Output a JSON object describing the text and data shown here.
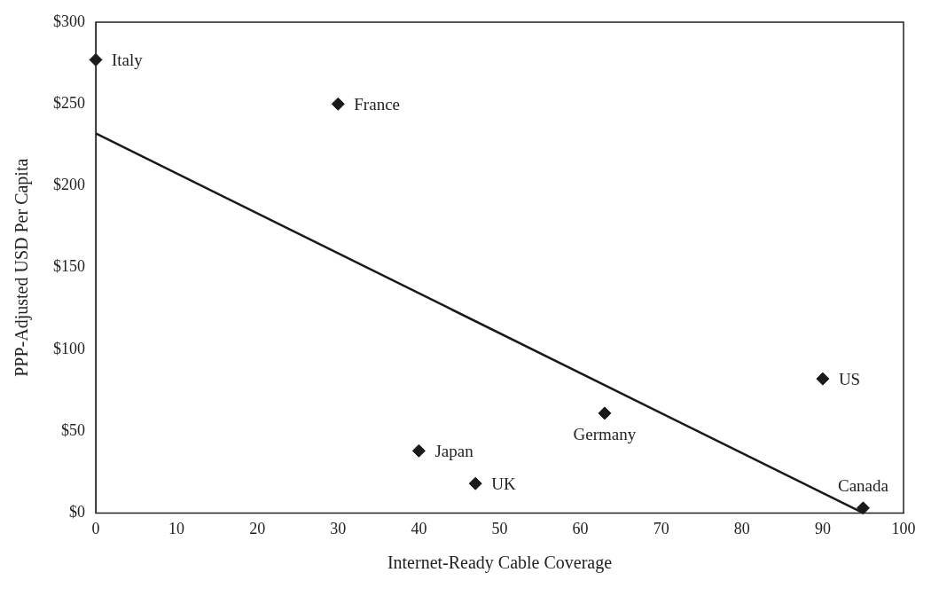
{
  "chart_data": {
    "type": "scatter",
    "xlabel": "Internet-Ready Cable Coverage",
    "ylabel": "PPP-Adjusted USD Per Capita",
    "series": [
      {
        "marker": "diamond",
        "color": "#1a1a1a",
        "x": [
          0,
          30,
          40,
          47,
          63,
          90,
          95
        ],
        "values": [
          277,
          250,
          38,
          18,
          61,
          82,
          3
        ]
      },
      {
        "type": "line",
        "marker": "none",
        "color": "#1a1a1a",
        "x": [
          0,
          95
        ],
        "values": [
          232,
          0
        ]
      }
    ],
    "xlim": [
      0,
      100
    ],
    "xticks": [
      0,
      10,
      20,
      30,
      40,
      50,
      60,
      70,
      80,
      90,
      100
    ],
    "ylim": [
      0,
      300
    ],
    "yticks": [
      {
        "value": 0,
        "label": "$0"
      },
      {
        "value": 50,
        "label": "$50"
      },
      {
        "value": 100,
        "label": "$100"
      },
      {
        "value": 150,
        "label": "$150"
      },
      {
        "value": 200,
        "label": "$200"
      },
      {
        "value": 250,
        "label": "$250"
      },
      {
        "value": 300,
        "label": "$300"
      }
    ],
    "grid": false,
    "legend": false,
    "line_style": "solid",
    "annotations": [
      {
        "text": "Italy",
        "x": 0,
        "y": 277
      },
      {
        "text": "France",
        "x": 30,
        "y": 250
      },
      {
        "text": "Japan",
        "x": 40,
        "y": 38
      },
      {
        "text": "UK",
        "x": 47,
        "y": 18
      },
      {
        "text": "Germany",
        "x": 63,
        "y": 61
      },
      {
        "text": "US",
        "x": 90,
        "y": 82
      },
      {
        "text": "Canada",
        "x": 95,
        "y": 3
      }
    ]
  }
}
